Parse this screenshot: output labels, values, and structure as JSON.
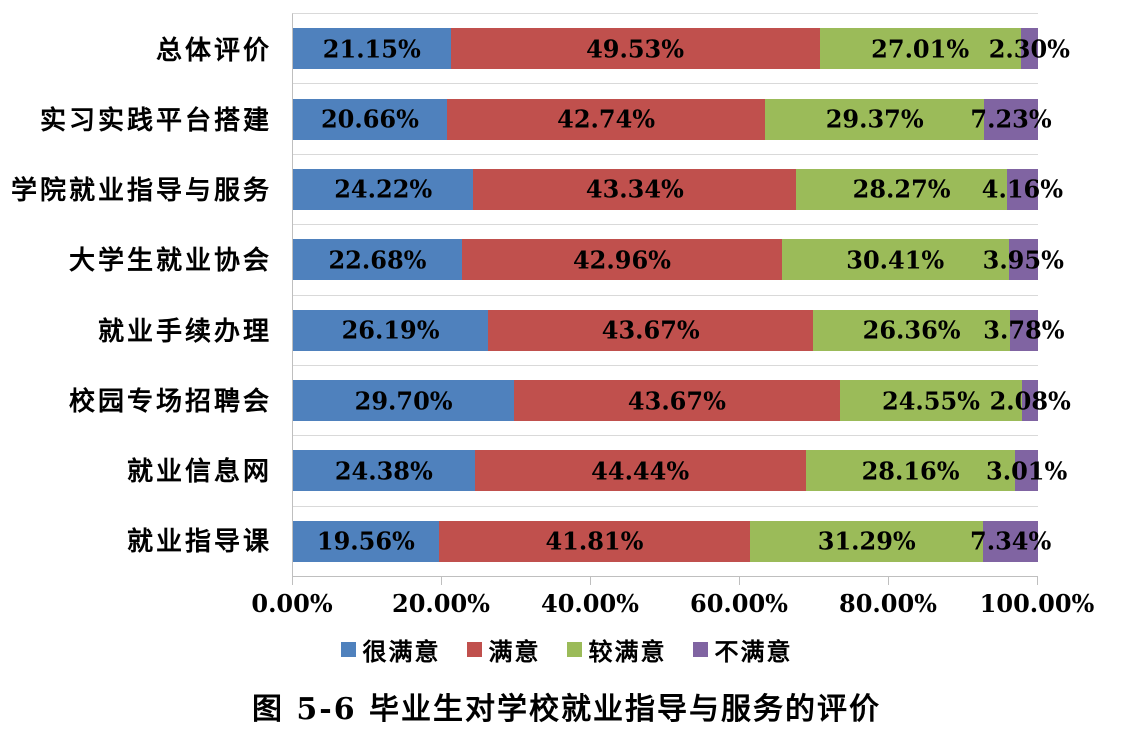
{
  "caption": "图 5-6 毕业生对学校就业指导与服务的评价",
  "colors": {
    "very_satisfied": "#4F81BD",
    "satisfied": "#C0504D",
    "fairly_satisfied": "#9BBB59",
    "unsatisfied": "#8064A2",
    "separator_line": "#D9D9D9",
    "axis_line": "#BFBFBF",
    "label_text": "#000000",
    "background": "#FFFFFF"
  },
  "chart_data": {
    "type": "bar",
    "subtype": "horizontal-stacked",
    "title": "",
    "xlabel": "",
    "ylabel": "",
    "xlim": [
      0,
      100
    ],
    "x_ticks": [
      "0.00%",
      "20.00%",
      "40.00%",
      "60.00%",
      "80.00%",
      "100.00%"
    ],
    "x_tick_values": [
      0,
      20,
      40,
      60,
      80,
      100
    ],
    "grid": "category-separators-only",
    "legend_position": "bottom",
    "categories": [
      "总体评价",
      "实习实践平台搭建",
      "学院就业指导与服务",
      "大学生就业协会",
      "就业手续办理",
      "校园专场招聘会",
      "就业信息网",
      "就业指导课"
    ],
    "series": [
      {
        "name": "很满意",
        "color": "#4F81BD",
        "values": [
          21.15,
          20.66,
          24.22,
          22.68,
          26.19,
          29.7,
          24.38,
          19.56
        ],
        "labels": [
          "21.15%",
          "20.66%",
          "24.22%",
          "22.68%",
          "26.19%",
          "29.70%",
          "24.38%",
          "19.56%"
        ]
      },
      {
        "name": "满意",
        "color": "#C0504D",
        "values": [
          49.53,
          42.74,
          43.34,
          42.96,
          43.67,
          43.67,
          44.44,
          41.81
        ],
        "labels": [
          "49.53%",
          "42.74%",
          "43.34%",
          "42.96%",
          "43.67%",
          "43.67%",
          "44.44%",
          "41.81%"
        ]
      },
      {
        "name": "较满意",
        "color": "#9BBB59",
        "values": [
          27.01,
          29.37,
          28.27,
          30.41,
          26.36,
          24.55,
          28.16,
          31.29
        ],
        "labels": [
          "27.01%",
          "29.37%",
          "28.27%",
          "30.41%",
          "26.36%",
          "24.55%",
          "28.16%",
          "31.29%"
        ]
      },
      {
        "name": "不满意",
        "color": "#8064A2",
        "values": [
          2.3,
          7.23,
          4.16,
          3.95,
          3.78,
          2.08,
          3.01,
          7.34
        ],
        "labels": [
          "2.30%",
          "7.23%",
          "4.16%",
          "3.95%",
          "3.78%",
          "2.08%",
          "3.01%",
          "7.34%"
        ]
      }
    ]
  }
}
